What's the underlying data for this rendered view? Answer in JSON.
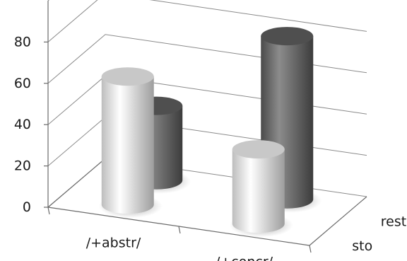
{
  "chart_data": {
    "type": "bar",
    "style": "3d-cylinder",
    "categories": [
      "/+abstr/",
      "/+concr/"
    ],
    "series": [
      {
        "name": "sto",
        "values": [
          62,
          36
        ],
        "color": "#e6e6e6"
      },
      {
        "name": "resto",
        "values": [
          36,
          79
        ],
        "color": "#6a6a6a"
      }
    ],
    "yticks": [
      "0",
      "20",
      "40",
      "60",
      "80"
    ],
    "ylim": [
      0,
      100
    ],
    "grid": true
  }
}
